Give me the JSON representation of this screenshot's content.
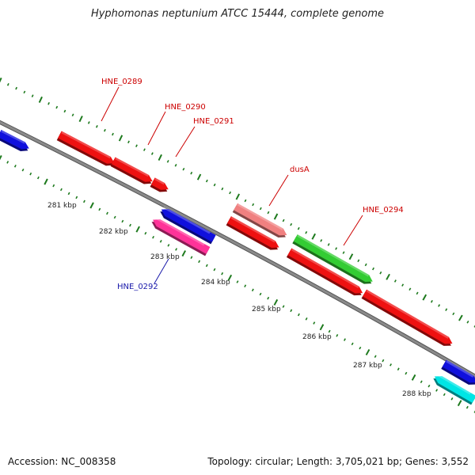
{
  "title": "Hyphomonas neptunium ATCC 15444, complete genome",
  "accession": "Accession: NC_008358",
  "summary": "Topology: circular; Length: 3,705,021 bp; Genes: 3,552",
  "colors": {
    "backbone": "#8a8a8a",
    "ticks": "#1e7a1e",
    "forward_label": "#cc0000",
    "reverse_label": "#1a1aaa"
  },
  "scale_labels": [
    "281 kbp",
    "282 kbp",
    "283 kbp",
    "284 kbp",
    "285 kbp",
    "286 kbp",
    "287 kbp",
    "288 kbp"
  ],
  "genes": [
    {
      "id": "blue-left",
      "label": "",
      "strand": "+",
      "color": "#1010dd"
    },
    {
      "id": "hne0289",
      "label": "HNE_0289",
      "strand": "+",
      "color": "#ee1111"
    },
    {
      "id": "hne0290",
      "label": "HNE_0290",
      "strand": "+",
      "color": "#ee1111"
    },
    {
      "id": "hne0291",
      "label": "HNE_0291",
      "strand": "+",
      "color": "#ee1111"
    },
    {
      "id": "dusA",
      "label": "dusA",
      "strand": "+",
      "color": "#f08080"
    },
    {
      "id": "red-mid",
      "label": "",
      "strand": "+",
      "color": "#ee1111"
    },
    {
      "id": "hne0294",
      "label": "HNE_0294",
      "strand": "+",
      "color": "#33cc33"
    },
    {
      "id": "red-long1",
      "label": "",
      "strand": "+",
      "color": "#ee1111"
    },
    {
      "id": "red-long2",
      "label": "",
      "strand": "+",
      "color": "#ee1111"
    },
    {
      "id": "blue-right",
      "label": "",
      "strand": "+",
      "color": "#1010dd"
    },
    {
      "id": "blue-rev",
      "label": "",
      "strand": "-",
      "color": "#1010dd"
    },
    {
      "id": "hne0292",
      "label": "HNE_0292",
      "strand": "-",
      "color": "#ff3399"
    },
    {
      "id": "cyan-rev",
      "label": "",
      "strand": "-",
      "color": "#00e5e5"
    }
  ]
}
